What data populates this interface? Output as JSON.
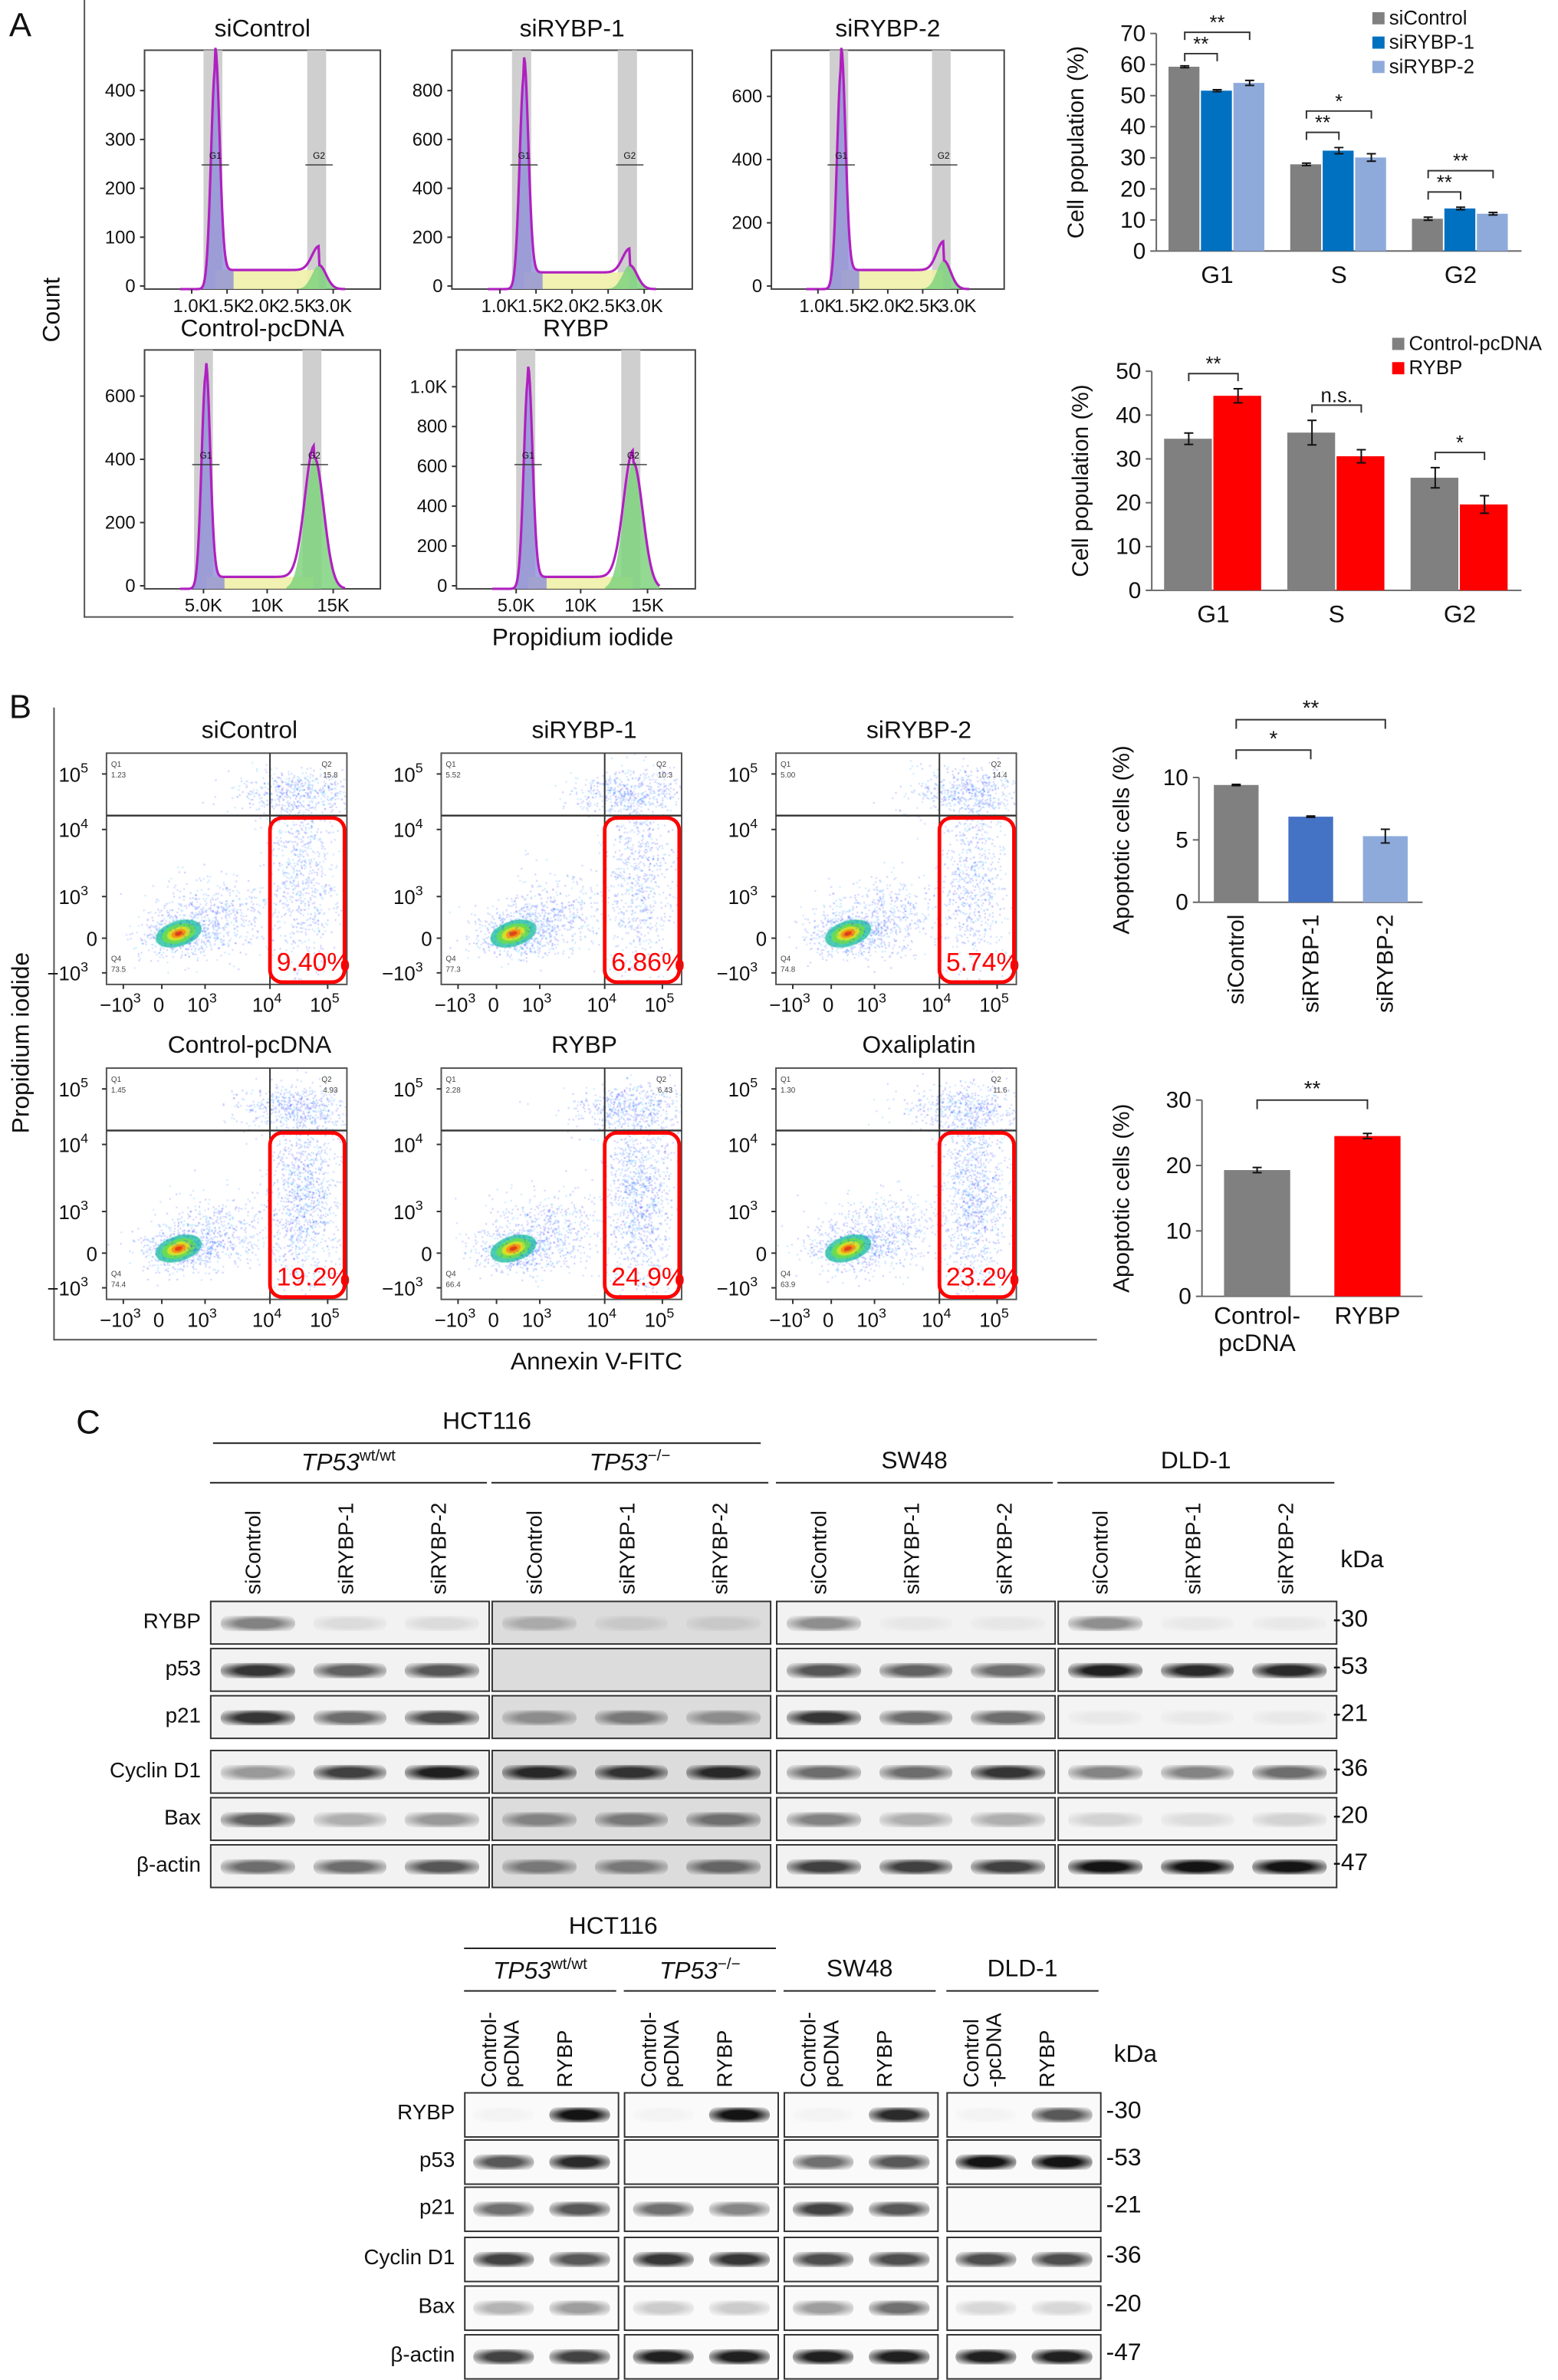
{
  "panels": {
    "a": "A",
    "b": "B",
    "c": "C"
  },
  "panel_a": {
    "y_label": "Count",
    "x_label": "Propidium iodide",
    "histograms": [
      {
        "title": "siControl",
        "y_ticks": [
          "0",
          "100",
          "200",
          "300",
          "400"
        ],
        "x_ticks": [
          "1.0K",
          "1.5K",
          "2.0K",
          "2.5K",
          "3.0K"
        ],
        "gates": [
          "G1",
          "G2"
        ]
      },
      {
        "title": "siRYBP-1",
        "y_ticks": [
          "0",
          "200",
          "400",
          "600",
          "800"
        ],
        "x_ticks": [
          "1.0K",
          "1.5K",
          "2.0K",
          "2.5K",
          "3.0K"
        ],
        "gates": [
          "G1",
          "G2"
        ]
      },
      {
        "title": "siRYBP-2",
        "y_ticks": [
          "0",
          "200",
          "400",
          "600"
        ],
        "x_ticks": [
          "1.0K",
          "1.5K",
          "2.0K",
          "2.5K",
          "3.0K"
        ],
        "gates": [
          "G1",
          "G2"
        ]
      },
      {
        "title": "Control-pcDNA",
        "y_ticks": [
          "0",
          "200",
          "400",
          "600"
        ],
        "x_ticks": [
          "5.0K",
          "10K",
          "15K"
        ],
        "gates": [
          "G1",
          "G2"
        ]
      },
      {
        "title": "RYBP",
        "y_ticks": [
          "0",
          "200",
          "400",
          "600",
          "800",
          "1.0K"
        ],
        "x_ticks": [
          "5.0K",
          "10K",
          "15K"
        ],
        "gates": [
          "G1",
          "G2"
        ]
      }
    ]
  },
  "panel_b": {
    "y_label": "Propidium iodide",
    "x_label": "Annexin V-FITC",
    "y_ticks": [
      {
        "b": "10",
        "e": "5"
      },
      {
        "b": "10",
        "e": "4"
      },
      {
        "b": "10",
        "e": "3"
      },
      {
        "b": "0",
        "e": ""
      },
      {
        "b": "−10",
        "e": "3"
      }
    ],
    "x_ticks": [
      {
        "b": "−10",
        "e": "3"
      },
      {
        "b": "0",
        "e": ""
      },
      {
        "b": "10",
        "e": "3"
      },
      {
        "b": "10",
        "e": "4"
      },
      {
        "b": "10",
        "e": "5"
      }
    ],
    "plots": [
      {
        "title": "siControl",
        "q1_label": "Q1",
        "q1": "1.23",
        "q2_label": "Q2",
        "q2": "15.8",
        "q4_label": "Q4",
        "q4": "73.5",
        "gate_pct": "9.40%"
      },
      {
        "title": "siRYBP-1",
        "q1_label": "Q1",
        "q1": "5.52",
        "q2_label": "Q2",
        "q2": "10.3",
        "q4_label": "Q4",
        "q4": "77.3",
        "gate_pct": "6.86%"
      },
      {
        "title": "siRYBP-2",
        "q1_label": "Q1",
        "q1": "5.00",
        "q2_label": "Q2",
        "q2": "14.4",
        "q4_label": "Q4",
        "q4": "74.8",
        "gate_pct": "5.74%"
      },
      {
        "title": "Control-pcDNA",
        "q1_label": "Q1",
        "q1": "1.45",
        "q2_label": "Q2",
        "q2": "4.93",
        "q4_label": "Q4",
        "q4": "74.4",
        "gate_pct": "19.2%"
      },
      {
        "title": "RYBP",
        "q1_label": "Q1",
        "q1": "2.28",
        "q2_label": "Q2",
        "q2": "6.43",
        "q4_label": "Q4",
        "q4": "66.4",
        "gate_pct": "24.9%"
      },
      {
        "title": "Oxaliplatin",
        "q1_label": "Q1",
        "q1": "1.30",
        "q2_label": "Q2",
        "q2": "11.6",
        "q4_label": "Q4",
        "q4": "63.9",
        "gate_pct": "23.2%"
      }
    ],
    "gate_color": "#ff0000"
  },
  "chart_data": [
    {
      "type": "bar",
      "title": "",
      "xlabel": "",
      "ylabel": "Cell population (%)",
      "ylim": [
        0,
        70
      ],
      "y_ticks": [
        0,
        10,
        20,
        30,
        40,
        50,
        60,
        70
      ],
      "categories": [
        "G1",
        "S",
        "G2"
      ],
      "legend": "top-right",
      "series": [
        {
          "name": "siControl",
          "color": "#808080",
          "values": [
            59.3,
            27.9,
            10.4
          ],
          "errors": [
            0.3,
            0.4,
            0.5
          ]
        },
        {
          "name": "siRYBP-1",
          "color": "#0070c0",
          "values": [
            51.6,
            32.3,
            13.7
          ],
          "errors": [
            0.3,
            1.0,
            0.4
          ]
        },
        {
          "name": "siRYBP-2",
          "color": "#8eaadb",
          "values": [
            54.1,
            30.1,
            12.0
          ],
          "errors": [
            0.8,
            1.2,
            0.4
          ]
        }
      ],
      "significance": [
        {
          "category": 0,
          "from": 0,
          "to": 1,
          "label": "**",
          "level": 0
        },
        {
          "category": 0,
          "from": 0,
          "to": 2,
          "label": "**",
          "level": 1
        },
        {
          "category": 1,
          "from": 0,
          "to": 1,
          "label": "**",
          "level": 0
        },
        {
          "category": 1,
          "from": 0,
          "to": 2,
          "label": "*",
          "level": 1
        },
        {
          "category": 2,
          "from": 0,
          "to": 1,
          "label": "**",
          "level": 0
        },
        {
          "category": 2,
          "from": 0,
          "to": 2,
          "label": "**",
          "level": 1
        }
      ]
    },
    {
      "type": "bar",
      "title": "",
      "xlabel": "",
      "ylabel": "Cell population (%)",
      "ylim": [
        0,
        50
      ],
      "y_ticks": [
        0,
        10,
        20,
        30,
        40,
        50
      ],
      "categories": [
        "G1",
        "S",
        "G2"
      ],
      "legend": "top-right",
      "series": [
        {
          "name": "Control-pcDNA",
          "color": "#808080",
          "values": [
            34.6,
            36.0,
            25.7
          ],
          "errors": [
            1.3,
            2.8,
            2.3
          ]
        },
        {
          "name": "RYBP",
          "color": "#ff0000",
          "values": [
            44.4,
            30.6,
            19.6
          ],
          "errors": [
            1.6,
            1.5,
            2.0
          ]
        }
      ],
      "significance": [
        {
          "category": 0,
          "from": 0,
          "to": 1,
          "label": "**",
          "level": 0
        },
        {
          "category": 1,
          "from": 0,
          "to": 1,
          "label": "n.s.",
          "level": 0
        },
        {
          "category": 2,
          "from": 0,
          "to": 1,
          "label": "*",
          "level": 0
        }
      ]
    },
    {
      "type": "bar",
      "title": "",
      "xlabel": "",
      "ylabel": "Apoptotic cells (%)",
      "ylim": [
        0,
        10
      ],
      "y_ticks": [
        0,
        5,
        10
      ],
      "categories": [
        "siControl",
        "siRYBP-1",
        "siRYBP-2"
      ],
      "values": [
        9.4,
        6.86,
        5.3
      ],
      "errors": [
        0.05,
        0.05,
        0.55
      ],
      "colors": [
        "#808080",
        "#4472c4",
        "#8eaadb"
      ],
      "significance": [
        {
          "from": 0,
          "to": 1,
          "label": "*",
          "level": 0
        },
        {
          "from": 0,
          "to": 2,
          "label": "**",
          "level": 1
        }
      ]
    },
    {
      "type": "bar",
      "title": "",
      "xlabel": "",
      "ylabel": "Apoptotic cells (%)",
      "ylim": [
        0,
        30
      ],
      "y_ticks": [
        0,
        10,
        20,
        30
      ],
      "categories": [
        "Control-\npcDNA",
        "RYBP"
      ],
      "values": [
        19.3,
        24.5
      ],
      "errors": [
        0.4,
        0.4
      ],
      "colors": [
        "#808080",
        "#ff0000"
      ],
      "significance": [
        {
          "from": 0,
          "to": 1,
          "label": "**",
          "level": 0
        }
      ]
    }
  ],
  "panel_c": {
    "kda_label": "kDa",
    "top": {
      "cell_line": "HCT116",
      "groups": [
        {
          "name": "TP53",
          "sup": "wt/wt",
          "lanes": [
            "siControl",
            "siRYBP-1",
            "siRYBP-2"
          ],
          "background": "#f2f2f2"
        },
        {
          "name": "TP53",
          "sup": "−/−",
          "lanes": [
            "siControl",
            "siRYBP-1",
            "siRYBP-2"
          ],
          "background": "#dcdcdc"
        },
        {
          "name": "SW48",
          "sup": "",
          "lanes": [
            "siControl",
            "siRYBP-1",
            "siRYBP-2"
          ],
          "background": "#f2f2f2"
        },
        {
          "name": "DLD-1",
          "sup": "",
          "lanes": [
            "siControl",
            "siRYBP-1",
            "siRYBP-2"
          ],
          "background": "#f4f4f4"
        }
      ],
      "rows": [
        {
          "protein": "RYBP",
          "kda": "30",
          "intensity": [
            [
              0.5,
              0.1,
              0.1
            ],
            [
              0.25,
              0.1,
              0.1
            ],
            [
              0.45,
              0.05,
              0.05
            ],
            [
              0.45,
              0.05,
              0.05
            ]
          ]
        },
        {
          "protein": "p53",
          "kda": "53",
          "intensity": [
            [
              0.85,
              0.65,
              0.7
            ],
            [
              0,
              0,
              0
            ],
            [
              0.7,
              0.65,
              0.6
            ],
            [
              0.95,
              0.9,
              0.9
            ]
          ]
        },
        {
          "protein": "p21",
          "kda": "21",
          "intensity": [
            [
              0.85,
              0.6,
              0.75
            ],
            [
              0.4,
              0.5,
              0.4
            ],
            [
              0.85,
              0.6,
              0.6
            ],
            [
              0.05,
              0.05,
              0.05
            ]
          ]
        },
        {
          "protein": "Cyclin D1",
          "kda": "36",
          "intensity": [
            [
              0.4,
              0.8,
              0.95
            ],
            [
              0.9,
              0.85,
              0.9
            ],
            [
              0.6,
              0.6,
              0.85
            ],
            [
              0.5,
              0.5,
              0.6
            ]
          ]
        },
        {
          "protein": "Bax",
          "kda": "20",
          "intensity": [
            [
              0.65,
              0.3,
              0.4
            ],
            [
              0.45,
              0.5,
              0.55
            ],
            [
              0.5,
              0.3,
              0.3
            ],
            [
              0.15,
              0.1,
              0.15
            ]
          ]
        },
        {
          "protein": "β-actin",
          "kda": "47",
          "intensity": [
            [
              0.6,
              0.6,
              0.7
            ],
            [
              0.5,
              0.5,
              0.6
            ],
            [
              0.8,
              0.8,
              0.8
            ],
            [
              1,
              1,
              1
            ]
          ]
        }
      ]
    },
    "bottom": {
      "cell_line": "HCT116",
      "groups": [
        {
          "name": "TP53",
          "sup": "wt/wt",
          "lanes": [
            "Control-\npcDNA",
            "RYBP"
          ],
          "background": "#fafafa"
        },
        {
          "name": "TP53",
          "sup": "−/−",
          "lanes": [
            "Control-\npcDNA",
            "RYBP"
          ],
          "background": "#fafafa"
        },
        {
          "name": "SW48",
          "sup": "",
          "lanes": [
            "Control-\npcDNA",
            "RYBP"
          ],
          "background": "#fafafa"
        },
        {
          "name": "DLD-1",
          "sup": "",
          "lanes": [
            "Control\n-pcDNA",
            "RYBP"
          ],
          "background": "#fafafa"
        }
      ],
      "rows": [
        {
          "protein": "RYBP",
          "kda": "30",
          "intensity": [
            [
              0.03,
              1
            ],
            [
              0.03,
              1
            ],
            [
              0.03,
              0.9
            ],
            [
              0.03,
              0.7
            ]
          ]
        },
        {
          "protein": "p53",
          "kda": "53",
          "intensity": [
            [
              0.7,
              0.9
            ],
            [
              0,
              0
            ],
            [
              0.6,
              0.7
            ],
            [
              1,
              1
            ]
          ]
        },
        {
          "protein": "p21",
          "kda": "21",
          "intensity": [
            [
              0.6,
              0.7
            ],
            [
              0.6,
              0.5
            ],
            [
              0.8,
              0.7
            ],
            [
              0,
              0
            ]
          ]
        },
        {
          "protein": "Cyclin D1",
          "kda": "36",
          "intensity": [
            [
              0.8,
              0.7
            ],
            [
              0.85,
              0.85
            ],
            [
              0.75,
              0.75
            ],
            [
              0.75,
              0.75
            ]
          ]
        },
        {
          "protein": "Bax",
          "kda": "20",
          "intensity": [
            [
              0.3,
              0.4
            ],
            [
              0.2,
              0.2
            ],
            [
              0.4,
              0.6
            ],
            [
              0.15,
              0.15
            ]
          ]
        },
        {
          "protein": "β-actin",
          "kda": "47",
          "intensity": [
            [
              0.8,
              0.8
            ],
            [
              0.95,
              0.95
            ],
            [
              0.95,
              0.95
            ],
            [
              0.95,
              0.95
            ]
          ]
        }
      ]
    }
  }
}
